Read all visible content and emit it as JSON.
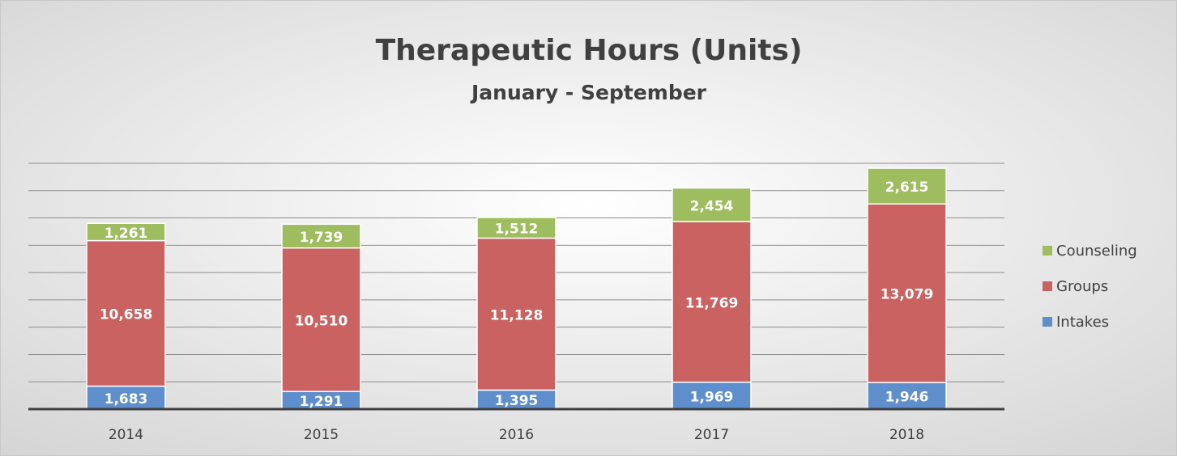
{
  "chart_data": {
    "type": "stacked_bar",
    "title": "Therapeutic Hours (Units)",
    "subtitle": "January - September",
    "categories": [
      "2014",
      "2015",
      "2016",
      "2017",
      "2018"
    ],
    "series": [
      {
        "name": "Intakes",
        "color": "#5e8fcc",
        "values": [
          1683,
          1291,
          1395,
          1969,
          1946
        ],
        "value_labels": [
          "1,683",
          "1,291",
          "1,395",
          "1,969",
          "1,946"
        ]
      },
      {
        "name": "Groups",
        "color": "#c96260",
        "values": [
          10658,
          10510,
          11128,
          11769,
          13079
        ],
        "value_labels": [
          "10,658",
          "10,510",
          "11,128",
          "11,769",
          "13,079"
        ]
      },
      {
        "name": "Counseling",
        "color": "#9dbd5e",
        "values": [
          1261,
          1739,
          1512,
          2454,
          2615
        ],
        "value_labels": [
          "1,261",
          "1,739",
          "1,512",
          "2,454",
          "2,615"
        ]
      }
    ],
    "ylim": [
      0,
      18000
    ],
    "yticks": [
      0,
      2000,
      4000,
      6000,
      8000,
      10000,
      12000,
      14000,
      16000,
      18000
    ],
    "grid": true,
    "legend": "right"
  }
}
